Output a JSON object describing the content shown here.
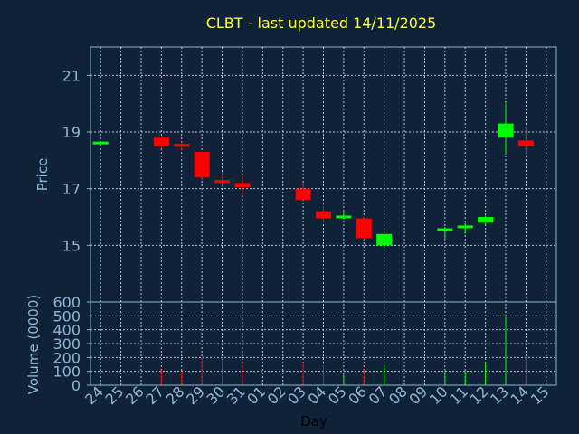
{
  "chart_data": {
    "type": "candlestick",
    "title": "CLBT - last updated 14/11/2025",
    "xlabel": "Day",
    "price_panel": {
      "ylabel": "Price",
      "ylim": [
        13.0,
        22.0
      ],
      "yticks": [
        15,
        17,
        19,
        21
      ]
    },
    "volume_panel": {
      "ylabel": "Volume (0000)",
      "ylim": [
        0,
        600
      ],
      "yticks": [
        0,
        100,
        200,
        300,
        400,
        500,
        600
      ]
    },
    "x_labels": [
      "24",
      "25",
      "26",
      "27",
      "28",
      "29",
      "30",
      "31",
      "01",
      "02",
      "03",
      "04",
      "05",
      "06",
      "07",
      "08",
      "09",
      "10",
      "11",
      "12",
      "13",
      "14",
      "15"
    ],
    "grid": true,
    "colors": {
      "up": "#00ff00",
      "down": "#ff0000",
      "background": "#0f2237",
      "title": "#ffff33",
      "axis": "#8fb7d6"
    },
    "candles": [
      {
        "x": 0,
        "open": 18.58,
        "high": 18.68,
        "low": 18.55,
        "close": 18.66,
        "volume": 10
      },
      {
        "x": 3,
        "open": 18.8,
        "high": 18.85,
        "low": 18.4,
        "close": 18.5,
        "volume": 110
      },
      {
        "x": 4,
        "open": 18.58,
        "high": 18.65,
        "low": 18.35,
        "close": 18.48,
        "volume": 100
      },
      {
        "x": 5,
        "open": 18.3,
        "high": 18.3,
        "low": 17.3,
        "close": 17.4,
        "volume": 205
      },
      {
        "x": 6,
        "open": 17.3,
        "high": 17.6,
        "low": 17.1,
        "close": 17.2,
        "volume": 200
      },
      {
        "x": 7,
        "open": 17.2,
        "high": 17.5,
        "low": 16.8,
        "close": 17.05,
        "volume": 160
      },
      {
        "x": 10,
        "open": 17.0,
        "high": 17.2,
        "low": 16.6,
        "close": 16.6,
        "volume": 165
      },
      {
        "x": 11,
        "open": 16.2,
        "high": 16.4,
        "low": 15.8,
        "close": 15.95,
        "volume": 150
      },
      {
        "x": 12,
        "open": 16.0,
        "high": 16.2,
        "low": 15.9,
        "close": 16.05,
        "volume": 80
      },
      {
        "x": 13,
        "open": 15.95,
        "high": 16.0,
        "low": 15.2,
        "close": 15.25,
        "volume": 110
      },
      {
        "x": 14,
        "open": 15.0,
        "high": 15.4,
        "low": 14.9,
        "close": 15.4,
        "volume": 140
      },
      {
        "x": 17,
        "open": 15.5,
        "high": 15.65,
        "low": 15.2,
        "close": 15.6,
        "volume": 100
      },
      {
        "x": 18,
        "open": 15.65,
        "high": 15.8,
        "low": 15.4,
        "close": 15.7,
        "volume": 100
      },
      {
        "x": 19,
        "open": 15.8,
        "high": 16.05,
        "low": 15.7,
        "close": 16.0,
        "volume": 160
      },
      {
        "x": 20,
        "open": 18.8,
        "high": 20.0,
        "low": 18.2,
        "close": 19.3,
        "volume": 500
      },
      {
        "x": 21,
        "open": 18.7,
        "high": 19.2,
        "low": 18.2,
        "close": 18.5,
        "volume": 210
      }
    ]
  }
}
